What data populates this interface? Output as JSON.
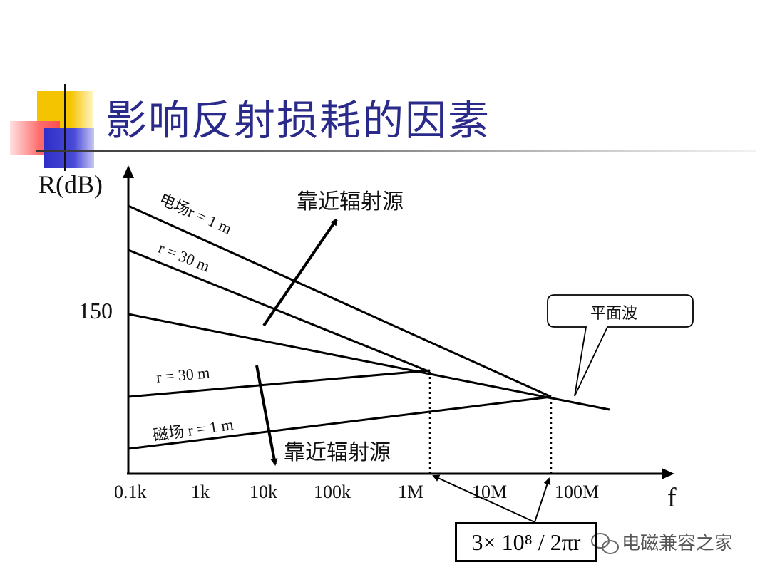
{
  "title": "影响反射损耗的因素",
  "axes": {
    "y_label": "R(dB)",
    "y_tick": "150",
    "x_label": "f",
    "x_ticks": [
      "0.1k",
      "1k",
      "10k",
      "100k",
      "1M",
      "10M",
      "100M"
    ]
  },
  "lines": {
    "e_field_1m": "电场r = 1 m",
    "e_field_30m": "r = 30 m",
    "h_field_30m": "r = 30 m",
    "h_field_1m": "磁场 r = 1 m"
  },
  "annotations": {
    "near_source_top": "靠近辐射源",
    "near_source_bottom": "靠近辐射源",
    "plane_wave": "平面波",
    "formula": "3× 10⁸ /  2πr"
  },
  "watermark": "电磁兼容之家",
  "colors": {
    "title": "#2a2a8a",
    "deco_yellow": "#f5c400",
    "deco_red": "#ff5a5a",
    "deco_blue": "#3a3acc"
  }
}
